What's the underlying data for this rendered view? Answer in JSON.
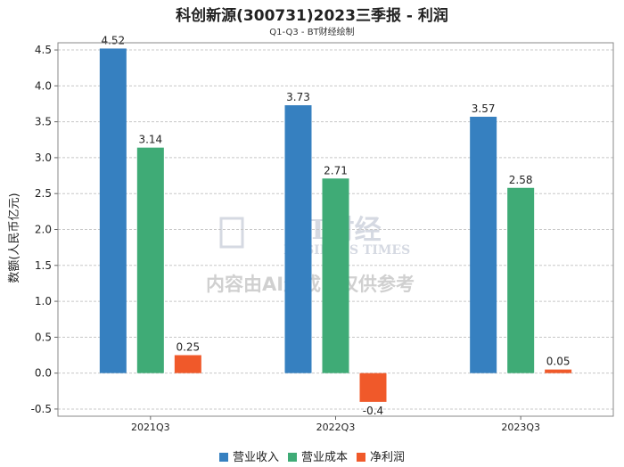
{
  "chart_data": {
    "type": "bar",
    "title": "科创新源(300731)2023三季报 - 利润",
    "subtitle": "Q1-Q3 - BT财经绘制",
    "xlabel": "",
    "ylabel": "数额(人民币亿元)",
    "ylim": [
      -0.6,
      4.6
    ],
    "yticks": [
      -0.5,
      0.0,
      0.5,
      1.0,
      1.5,
      2.0,
      2.5,
      3.0,
      3.5,
      4.0,
      4.5
    ],
    "ytick_labels": [
      "-0.5",
      "0.0",
      "0.5",
      "1.0",
      "1.5",
      "2.0",
      "2.5",
      "3.0",
      "3.5",
      "4.0",
      "4.5"
    ],
    "categories": [
      "2021Q3",
      "2022Q3",
      "2023Q3"
    ],
    "series": [
      {
        "name": "营业收入",
        "color": "#3680c0",
        "values": [
          4.52,
          3.73,
          3.57
        ],
        "labels": [
          "4.52",
          "3.73",
          "3.57"
        ]
      },
      {
        "name": "营业成本",
        "color": "#3fab76",
        "values": [
          3.14,
          2.71,
          2.58
        ],
        "labels": [
          "3.14",
          "2.71",
          "2.58"
        ]
      },
      {
        "name": "净利润",
        "color": "#f0592a",
        "values": [
          0.25,
          -0.4,
          0.05
        ],
        "labels": [
          "0.25",
          "-0.4",
          "0.05"
        ]
      }
    ],
    "grid": true,
    "legend": "bottom-center"
  },
  "watermark": {
    "brand": "BT财经",
    "brand_en": "BUSINESS TIMES",
    "notice": "内容由AI生成，仅供参考"
  }
}
